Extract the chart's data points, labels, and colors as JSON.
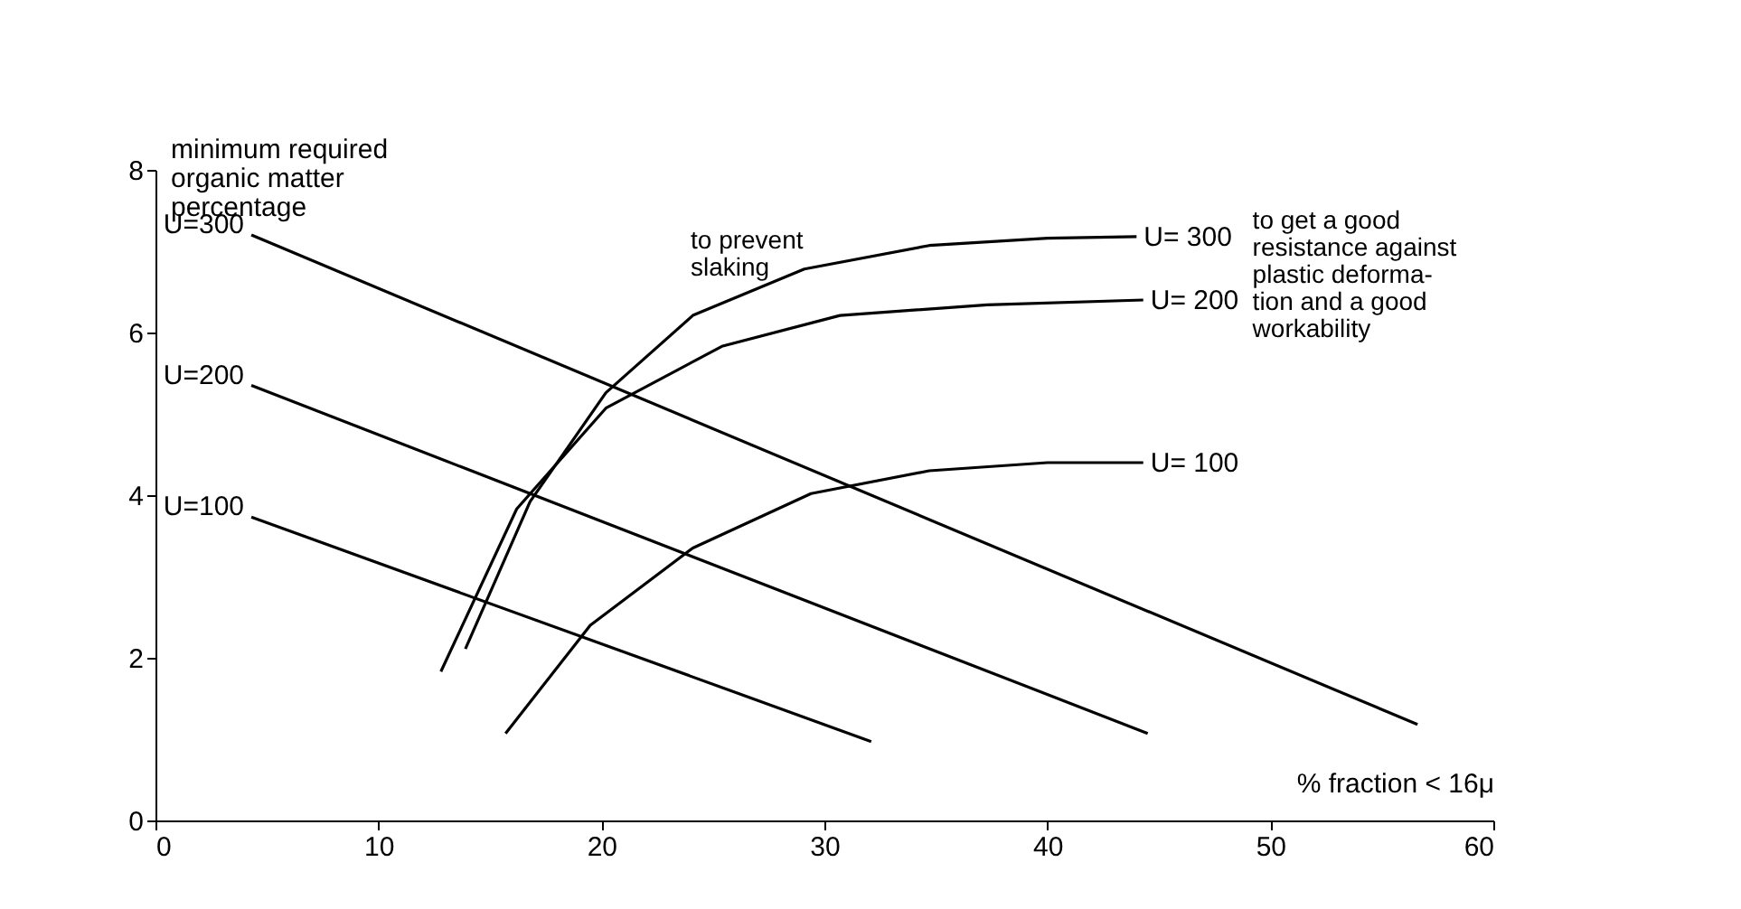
{
  "chart_data": {
    "type": "line",
    "xlabel": "% fraction < 16μ",
    "ylabel": "minimum required\norganic matter\npercentage",
    "xlim": [
      0,
      60
    ],
    "xticks": [
      0,
      10,
      20,
      30,
      40,
      50,
      60
    ],
    "ylim": [
      0,
      8
    ],
    "yticks": [
      0,
      2,
      4,
      6,
      8
    ],
    "grid": false,
    "marker": "none",
    "line_style": "solid",
    "series": [
      {
        "name": "U=300",
        "color": "#000000",
        "x": [
          4.3,
          56.6
        ],
        "values": [
          7.2,
          1.18
        ]
      },
      {
        "name": "U=200",
        "color": "#000000",
        "x": [
          4.3,
          44.5
        ],
        "values": [
          5.35,
          1.07
        ]
      },
      {
        "name": "U=100",
        "color": "#000000",
        "x": [
          4.3,
          32.1
        ],
        "values": [
          3.73,
          0.97
        ]
      },
      {
        "name": "U= 300",
        "color": "#000000",
        "x": [
          13.9,
          16.8,
          20.2,
          24.1,
          29.1,
          34.7,
          40.0,
          44.0
        ],
        "values": [
          2.11,
          3.92,
          5.26,
          6.21,
          6.78,
          7.07,
          7.16,
          7.18
        ]
      },
      {
        "name": "U= 200",
        "color": "#000000",
        "x": [
          12.8,
          16.2,
          20.2,
          25.4,
          30.7,
          37.3,
          44.3
        ],
        "values": [
          1.83,
          3.83,
          5.07,
          5.83,
          6.21,
          6.34,
          6.4
        ]
      },
      {
        "name": "U= 100",
        "color": "#000000",
        "x": [
          15.7,
          19.5,
          24.1,
          29.4,
          34.7,
          40.0,
          44.3
        ],
        "values": [
          1.07,
          2.4,
          3.35,
          4.02,
          4.3,
          4.4,
          4.4
        ]
      }
    ],
    "annotations": [
      "to prevent\nslaking",
      "to get a good\nresistance against\nplastic deforma-\ntion and a good\nworkability"
    ]
  }
}
